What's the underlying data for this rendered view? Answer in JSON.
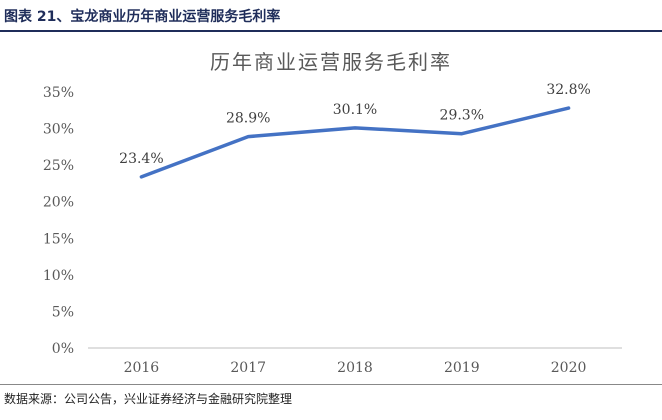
{
  "figure": {
    "caption": "图表 21、宝龙商业历年商业运营服务毛利率",
    "source": "数据来源：公司公告，兴业证券经济与金融研究院整理"
  },
  "colors": {
    "line": "#4472c4",
    "header_rule": "#1f2d5a",
    "axis": "#bfbfbf",
    "text": "#595959"
  },
  "chart_data": {
    "type": "line",
    "title": "历年商业运营服务毛利率",
    "categories": [
      "2016",
      "2017",
      "2018",
      "2019",
      "2020"
    ],
    "series": [
      {
        "values": [
          23.4,
          28.9,
          30.1,
          29.3,
          32.8
        ],
        "labels": [
          "23.4%",
          "28.9%",
          "30.1%",
          "29.3%",
          "32.8%"
        ]
      }
    ],
    "yticks": [
      "0%",
      "5%",
      "10%",
      "15%",
      "20%",
      "25%",
      "30%",
      "35%"
    ],
    "ylim": [
      0,
      35
    ],
    "grid": false,
    "legend": "none"
  }
}
